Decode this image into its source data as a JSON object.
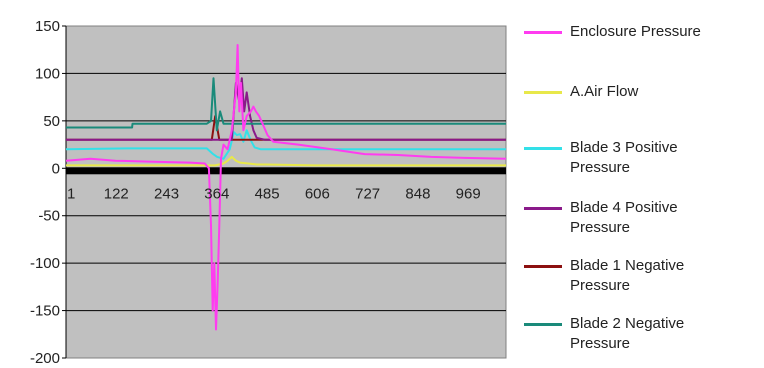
{
  "chart_data": {
    "type": "line",
    "title": "",
    "xlabel": "",
    "ylabel": "",
    "ylim": [
      -200,
      150
    ],
    "yticks": [
      150,
      100,
      50,
      0,
      -50,
      -100,
      -150,
      -200
    ],
    "xlim": [
      1,
      1060
    ],
    "xticks": [
      1,
      122,
      243,
      364,
      485,
      606,
      727,
      848,
      969
    ],
    "grid": true,
    "legend_position": "right",
    "plot_background": "#c0c0c0",
    "series": [
      {
        "name": "A.Air Flow",
        "color": "#e8e84a",
        "x": [
          1,
          300,
          360,
          380,
          390,
          400,
          410,
          420,
          440,
          460,
          480,
          600,
          800,
          1060
        ],
        "y": [
          3,
          3,
          3,
          5,
          8,
          12,
          8,
          6,
          5,
          4,
          4,
          3,
          3,
          3
        ]
      },
      {
        "name": "Blade 3 Positive Pressure",
        "color": "#33e0e8",
        "x": [
          1,
          150,
          340,
          355,
          365,
          380,
          395,
          405,
          412,
          420,
          428,
          436,
          445,
          455,
          470,
          500,
          1060
        ],
        "y": [
          20,
          21,
          21,
          15,
          12,
          10,
          20,
          38,
          35,
          36,
          28,
          40,
          30,
          22,
          20,
          20,
          20
        ]
      },
      {
        "name": "Blade 1 Negative Pressure",
        "color": "#8c1010",
        "x": [
          1,
          340,
          352,
          360,
          370,
          380,
          395,
          1060
        ],
        "y": [
          30,
          30,
          30,
          55,
          30,
          30,
          30,
          30
        ]
      },
      {
        "name": "Blade 4 Positive Pressure",
        "color": "#8a1a8a",
        "x": [
          1,
          350,
          380,
          400,
          405,
          410,
          418,
          424,
          430,
          436,
          444,
          452,
          460,
          480,
          1060
        ],
        "y": [
          30,
          30,
          30,
          30,
          60,
          90,
          70,
          95,
          60,
          80,
          55,
          40,
          32,
          30,
          30
        ]
      },
      {
        "name": "Blade 2 Negative Pressure",
        "color": "#1a8a7a",
        "x": [
          1,
          160,
          161,
          340,
          350,
          356,
          364,
          372,
          380,
          1060
        ],
        "y": [
          43,
          43,
          47,
          47,
          50,
          95,
          40,
          60,
          47,
          47
        ]
      },
      {
        "name": "Enclosure Pressure",
        "color": "#ff3cf0",
        "x": [
          1,
          60,
          120,
          200,
          300,
          335,
          345,
          350,
          354,
          358,
          362,
          366,
          370,
          374,
          380,
          390,
          400,
          410,
          414,
          418,
          422,
          428,
          436,
          446,
          452,
          458,
          466,
          476,
          486,
          500,
          560,
          640,
          720,
          800,
          880,
          960,
          1060
        ],
        "y": [
          8,
          10,
          8,
          7,
          6,
          5,
          0,
          -60,
          -150,
          -100,
          -170,
          -120,
          -60,
          10,
          25,
          20,
          40,
          80,
          130,
          60,
          90,
          40,
          55,
          60,
          65,
          60,
          55,
          45,
          35,
          28,
          25,
          20,
          15,
          14,
          12,
          11,
          10
        ]
      }
    ]
  },
  "legend": [
    {
      "label": "Enclosure Pressure",
      "color": "#ff3cf0"
    },
    {
      "label": "A.Air Flow",
      "color": "#e8e84a"
    },
    {
      "label": "Blade 3 Positive Pressure",
      "color": "#33e0e8"
    },
    {
      "label": "Blade 4 Positive Pressure",
      "color": "#8a1a8a"
    },
    {
      "label": "Blade 1 Negative Pressure",
      "color": "#8c1010"
    },
    {
      "label": "Blade 2 Negative Pressure",
      "color": "#1a8a7a"
    }
  ]
}
